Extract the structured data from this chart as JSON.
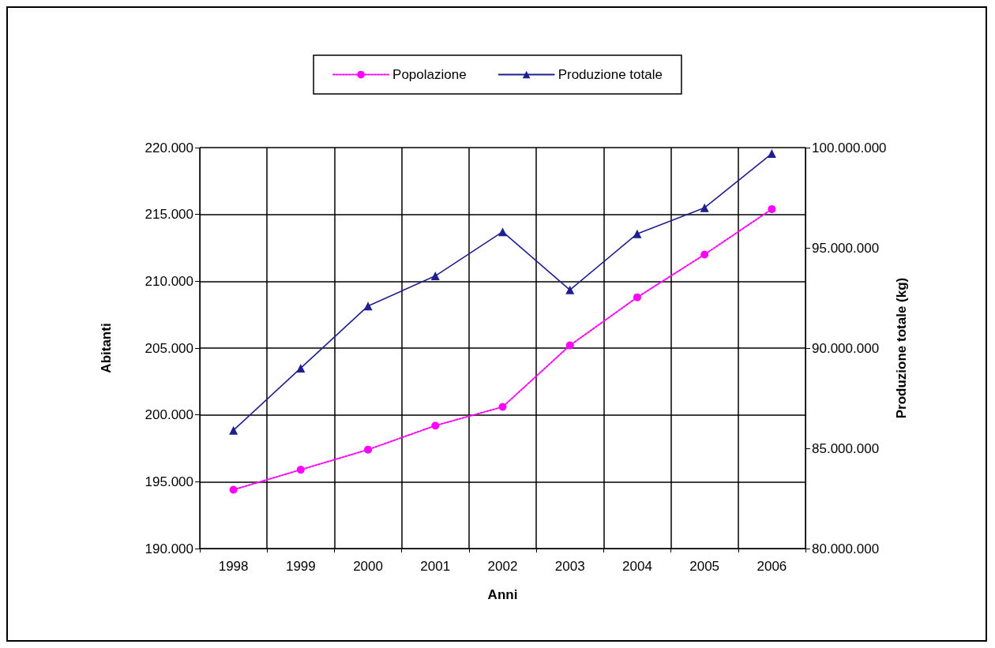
{
  "chart_data": {
    "type": "line",
    "xlabel": "Anni",
    "ylabel": "Abitanti",
    "y2label": "Produzione totale (kg)",
    "categories": [
      "1998",
      "1999",
      "2000",
      "2001",
      "2002",
      "2003",
      "2004",
      "2005",
      "2006"
    ],
    "series": [
      {
        "name": "Popolazione",
        "color": "#ff00ff",
        "marker": "circle",
        "line_style": "dotted",
        "values": [
          194400,
          195900,
          197400,
          199200,
          200600,
          205200,
          208800,
          212000,
          215400
        ]
      },
      {
        "name": "Produzione totale",
        "color": "#1f1f8f",
        "marker": "triangle",
        "line_style": "solid",
        "axis": "y2",
        "values": [
          85900000,
          89000000,
          92100000,
          93600000,
          95800000,
          92900000,
          95700000,
          97000000,
          99700000
        ]
      }
    ],
    "ylim": [
      190000,
      220000
    ],
    "yticks": [
      {
        "value": 190000,
        "label": "190.000"
      },
      {
        "value": 195000,
        "label": "195.000"
      },
      {
        "value": 200000,
        "label": "200.000"
      },
      {
        "value": 205000,
        "label": "205.000"
      },
      {
        "value": 210000,
        "label": "210.000"
      },
      {
        "value": 215000,
        "label": "215.000"
      },
      {
        "value": 220000,
        "label": "220.000"
      }
    ],
    "y2lim": [
      80000000,
      100000000
    ],
    "y2ticks": [
      {
        "value": 80000000,
        "label": "80.000.000"
      },
      {
        "value": 85000000,
        "label": "85.000.000"
      },
      {
        "value": 90000000,
        "label": "90.000.000"
      },
      {
        "value": 95000000,
        "label": "95.000.000"
      },
      {
        "value": 100000000,
        "label": "100.000.000"
      }
    ],
    "grid": true,
    "legend": "top"
  }
}
